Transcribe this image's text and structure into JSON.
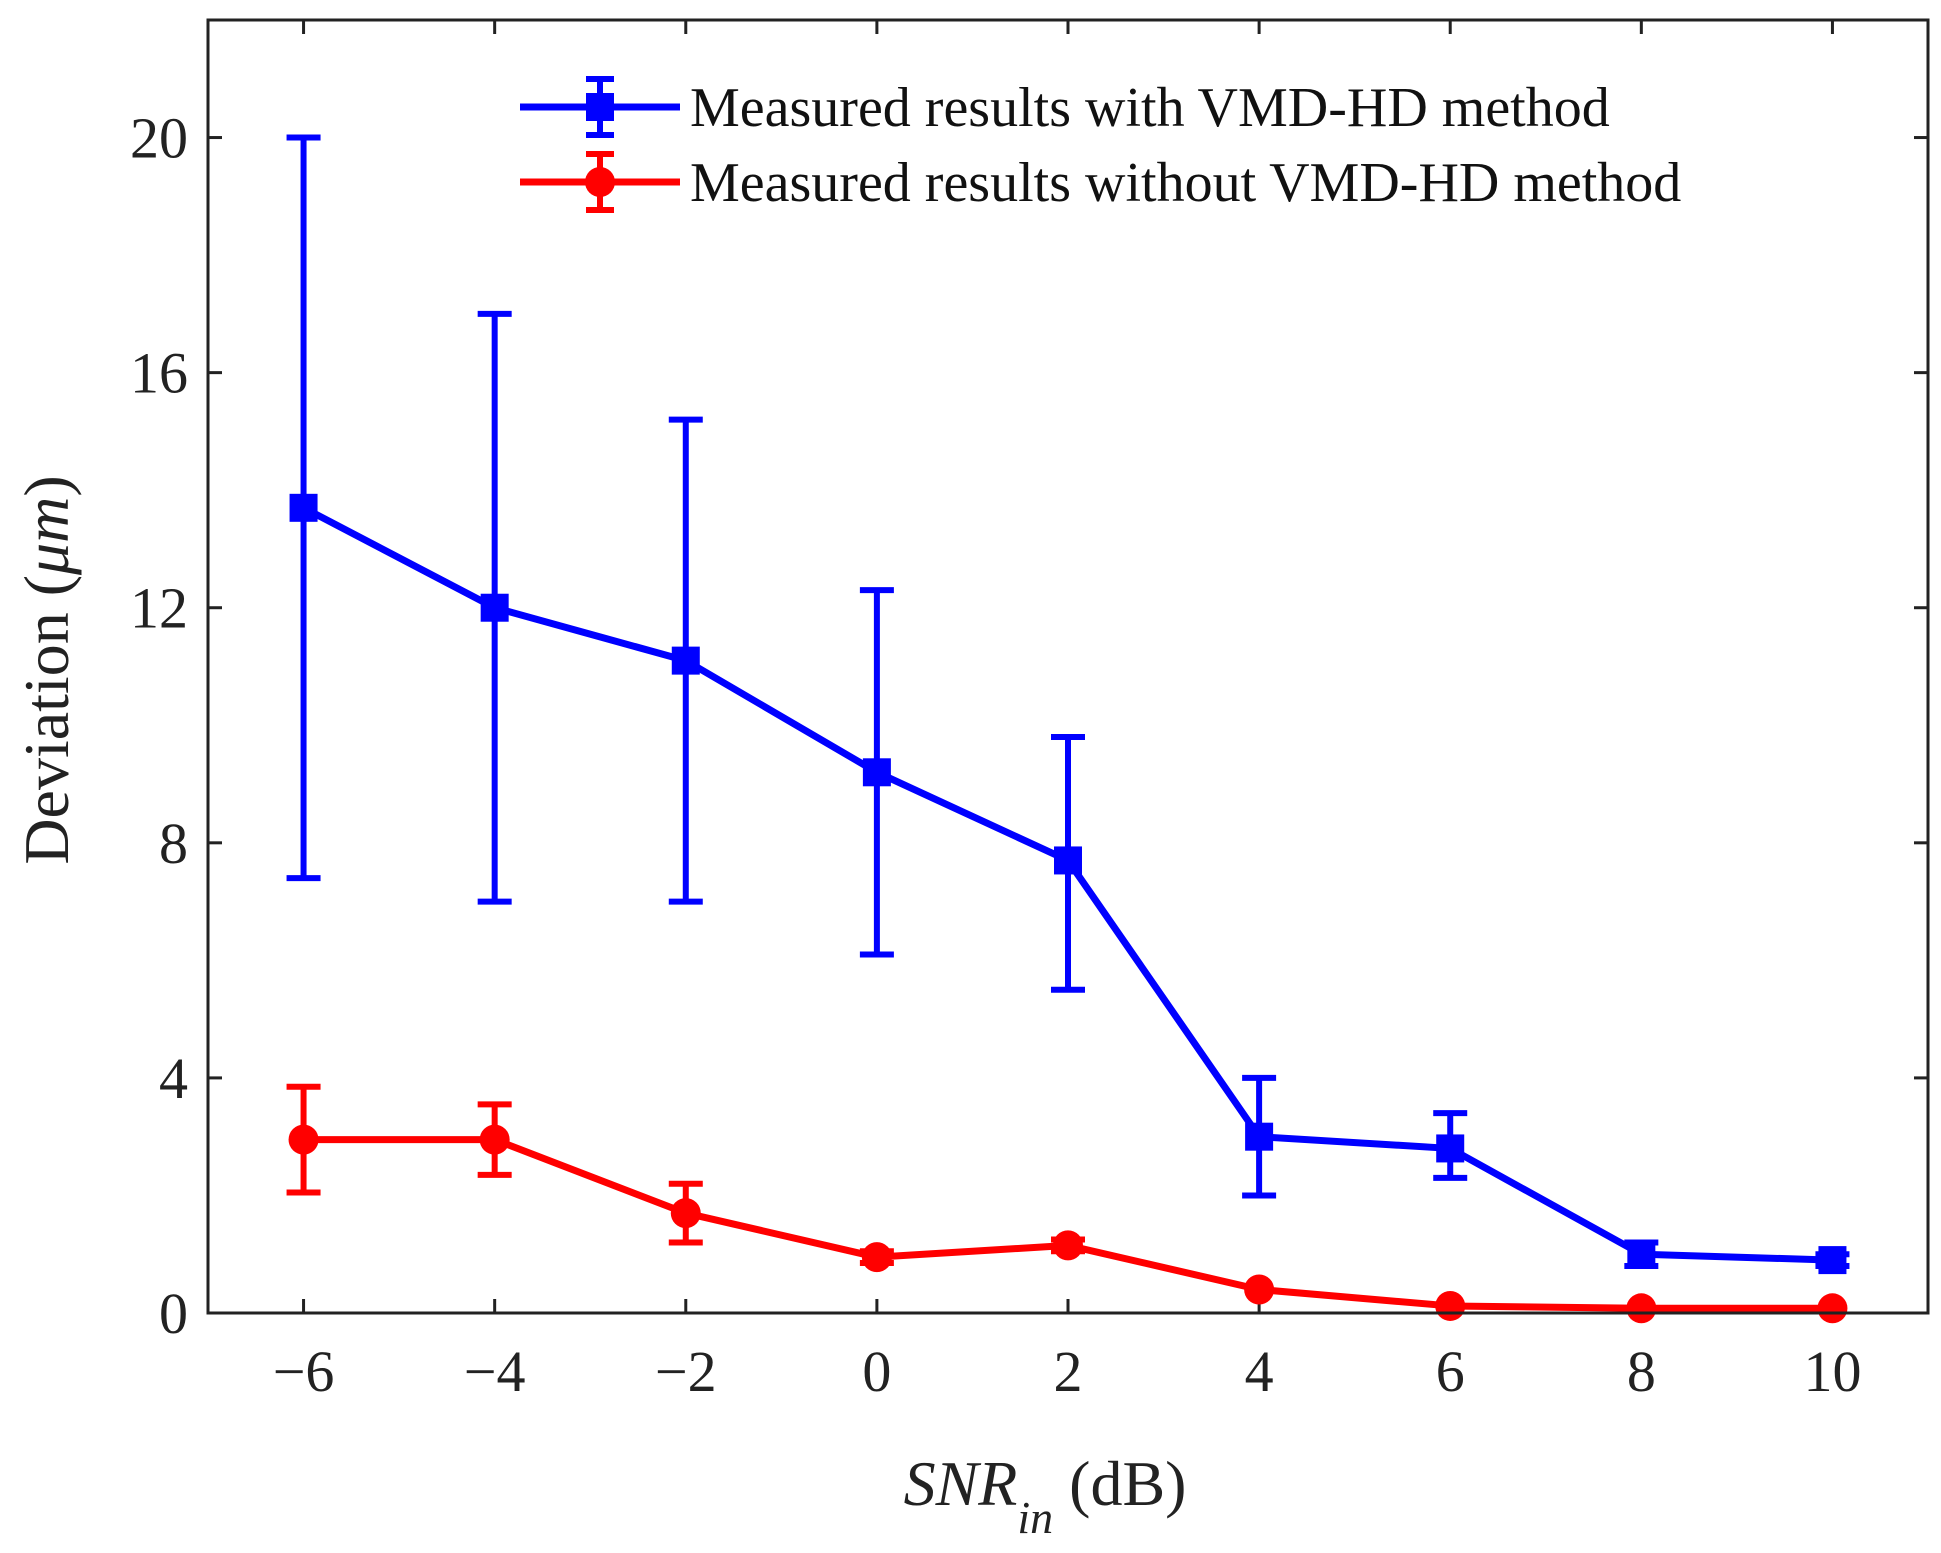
{
  "chart_data": {
    "type": "line",
    "x": [
      -6,
      -4,
      -2,
      0,
      2,
      4,
      6,
      8,
      10
    ],
    "x_tick_labels": [
      "−6",
      "−4",
      "−2",
      "0",
      "2",
      "4",
      "6",
      "8",
      "10"
    ],
    "y_ticks": [
      0,
      4,
      8,
      12,
      16,
      20
    ],
    "y_tick_labels": [
      "0",
      "4",
      "8",
      "12",
      "16",
      "20"
    ],
    "xlim": [
      -7,
      11
    ],
    "ylim": [
      0,
      22
    ],
    "xlabel": {
      "main": "SNR",
      "subscript": "in",
      "unit": " (dB)"
    },
    "ylabel": {
      "main": "Deviation (",
      "symbol": "μm",
      "close": ")"
    },
    "legend_position": "top-right",
    "series": [
      {
        "name": "Measured results with VMD-HD method",
        "color": "#0000ff",
        "marker": "square",
        "values": [
          13.7,
          12.0,
          11.1,
          9.2,
          7.7,
          3.0,
          2.8,
          1.0,
          0.9
        ],
        "err_low": [
          7.4,
          7.0,
          7.0,
          6.1,
          5.5,
          2.0,
          2.3,
          0.8,
          0.8
        ],
        "err_high": [
          20.0,
          17.0,
          15.2,
          12.3,
          9.8,
          4.0,
          3.4,
          1.2,
          1.0
        ]
      },
      {
        "name": "Measured results without VMD-HD method",
        "color": "#ff0000",
        "marker": "circle",
        "values": [
          2.95,
          2.95,
          1.7,
          0.95,
          1.15,
          0.4,
          0.12,
          0.08,
          0.08
        ],
        "err_low": [
          2.05,
          2.35,
          1.2,
          0.85,
          1.05,
          0.4,
          0.12,
          0.08,
          0.08
        ],
        "err_high": [
          3.85,
          3.55,
          2.2,
          1.05,
          1.25,
          0.4,
          0.12,
          0.08,
          0.08
        ]
      }
    ]
  }
}
